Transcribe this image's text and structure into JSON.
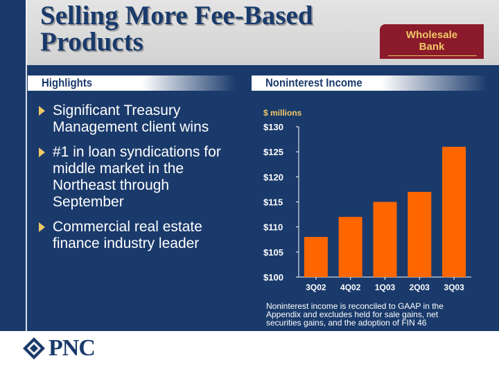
{
  "title_line1": "Selling More Fee-Based",
  "title_line2": "Products",
  "badge": {
    "line1": "Wholesale",
    "line2": "Bank"
  },
  "highlights_heading": "Highlights",
  "highlights": [
    "Significant Treasury Management client wins",
    "#1 in loan syndications for middle market in the Northeast through September",
    "Commercial real estate finance industry leader"
  ],
  "chart_heading": "Noninterest Income",
  "footnote": "Noninterest income is reconciled to GAAP in the Appendix and excludes held for sale gains, net securities gains, and the adoption of FIN 46",
  "logo_text": "PNC",
  "colors": {
    "background": "#1a3a6b",
    "bar": "#ff6600",
    "accent": "#f0c868",
    "badge": "#8b1a2a"
  },
  "chart_data": {
    "type": "bar",
    "title": "",
    "ylabel": "$ millions",
    "categories": [
      "3Q02",
      "4Q02",
      "1Q03",
      "2Q03",
      "3Q03"
    ],
    "values": [
      108,
      112,
      115,
      117,
      126
    ],
    "ylim": [
      100,
      130
    ],
    "yticks": [
      100,
      105,
      110,
      115,
      120,
      125,
      130
    ],
    "ytick_labels": [
      "$100",
      "$105",
      "$110",
      "$115",
      "$120",
      "$125",
      "$130"
    ],
    "grid": false,
    "legend": "none"
  }
}
